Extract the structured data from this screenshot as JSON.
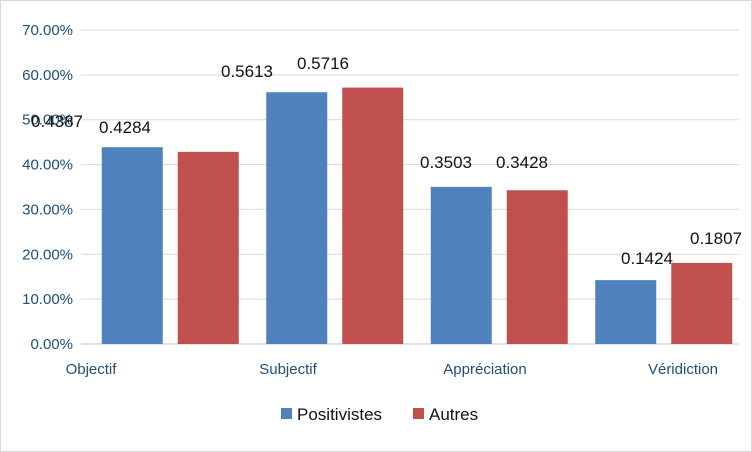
{
  "chart_data": {
    "type": "bar",
    "categories": [
      "Objectif",
      "Subjectif",
      "Appréciation",
      "Véridiction"
    ],
    "series": [
      {
        "name": "Positivistes",
        "color": "#4f81bd",
        "values": [
          0.4387,
          0.5613,
          0.3503,
          0.1424
        ],
        "labels": [
          "0.4387",
          "0.5613",
          "0.3503",
          "0.1424"
        ]
      },
      {
        "name": "Autres",
        "color": "#c0504d",
        "values": [
          0.4284,
          0.5716,
          0.3428,
          0.1807
        ],
        "labels": [
          "0.4284",
          "0.5716",
          "0.3428",
          "0.1807"
        ]
      }
    ],
    "ylim": [
      0,
      0.7
    ],
    "yticks": [
      0,
      0.1,
      0.2,
      0.3,
      0.4,
      0.5,
      0.6,
      0.7
    ],
    "ytick_labels": [
      "0.00%",
      "10.00%",
      "20.00%",
      "30.00%",
      "40.00%",
      "50.00%",
      "60.00%",
      "70.00%"
    ],
    "grid": true,
    "legend_position": "bottom"
  }
}
